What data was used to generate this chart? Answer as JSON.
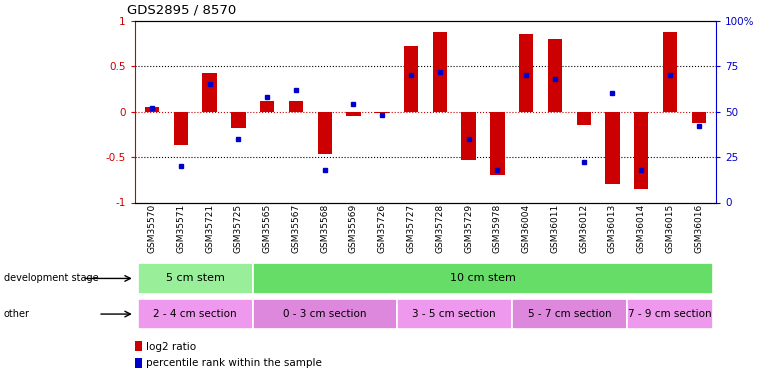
{
  "title": "GDS2895 / 8570",
  "samples": [
    "GSM35570",
    "GSM35571",
    "GSM35721",
    "GSM35725",
    "GSM35565",
    "GSM35567",
    "GSM35568",
    "GSM35569",
    "GSM35726",
    "GSM35727",
    "GSM35728",
    "GSM35729",
    "GSM35978",
    "GSM36004",
    "GSM36011",
    "GSM36012",
    "GSM36013",
    "GSM36014",
    "GSM36015",
    "GSM36016"
  ],
  "log2_ratio": [
    0.05,
    -0.37,
    0.42,
    -0.18,
    0.12,
    0.12,
    -0.47,
    -0.05,
    -0.02,
    0.72,
    0.87,
    -0.53,
    -0.7,
    0.85,
    0.8,
    -0.15,
    -0.8,
    -0.85,
    0.87,
    -0.13
  ],
  "percentile": [
    52,
    20,
    65,
    35,
    58,
    62,
    18,
    54,
    48,
    70,
    72,
    35,
    18,
    70,
    68,
    22,
    60,
    18,
    70,
    42
  ],
  "bar_color": "#cc0000",
  "dot_color": "#0000cc",
  "ylim": [
    -1,
    1
  ],
  "yticks_left": [
    -1,
    -0.5,
    0,
    0.5,
    1
  ],
  "ytick_labels_left": [
    "-1",
    "-0.5",
    "0",
    "0.5",
    "1"
  ],
  "yticks_right": [
    0,
    25,
    50,
    75,
    100
  ],
  "right_labels": [
    "0",
    "25",
    "50",
    "75",
    "100%"
  ],
  "hline_color": "#cc0000",
  "dev_stage_groups": [
    {
      "label": "5 cm stem",
      "start": 0,
      "end": 3,
      "color": "#99ee99"
    },
    {
      "label": "10 cm stem",
      "start": 4,
      "end": 19,
      "color": "#66dd66"
    }
  ],
  "other_groups": [
    {
      "label": "2 - 4 cm section",
      "start": 0,
      "end": 3,
      "color": "#ee99ee"
    },
    {
      "label": "0 - 3 cm section",
      "start": 4,
      "end": 8,
      "color": "#dd88dd"
    },
    {
      "label": "3 - 5 cm section",
      "start": 9,
      "end": 12,
      "color": "#ee99ee"
    },
    {
      "label": "5 - 7 cm section",
      "start": 13,
      "end": 16,
      "color": "#dd88dd"
    },
    {
      "label": "7 - 9 cm section",
      "start": 17,
      "end": 19,
      "color": "#ee99ee"
    }
  ],
  "bg_color": "#ffffff",
  "bar_width": 0.5
}
